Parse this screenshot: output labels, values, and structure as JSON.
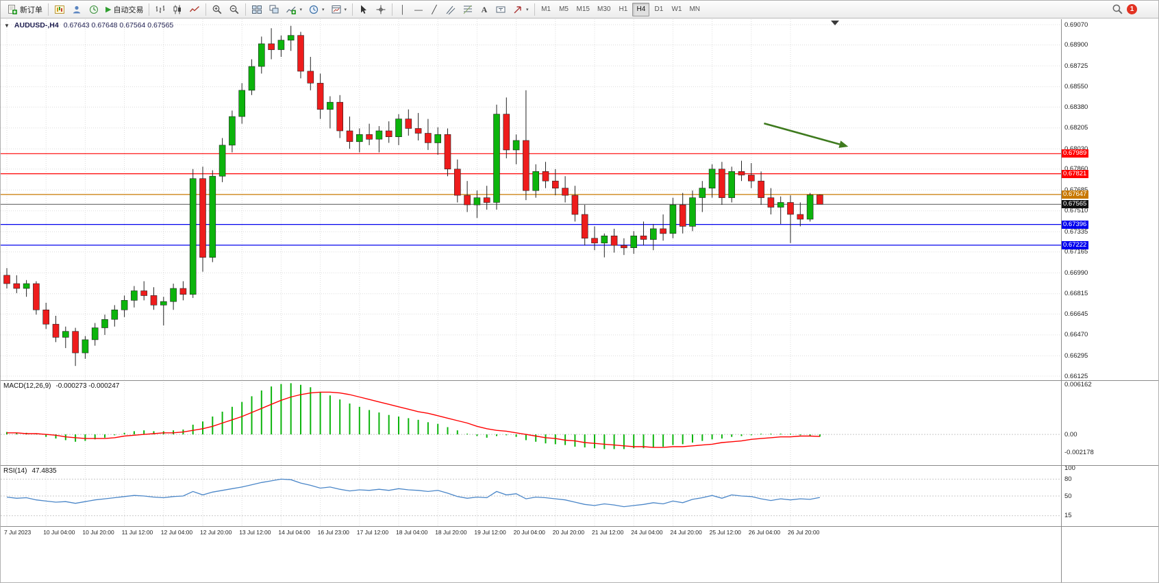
{
  "toolbar": {
    "new_order_label": "新订单",
    "autotrading_label": "自动交易",
    "timeframes": [
      {
        "label": "M1",
        "active": false
      },
      {
        "label": "M5",
        "active": false
      },
      {
        "label": "M15",
        "active": false
      },
      {
        "label": "M30",
        "active": false
      },
      {
        "label": "H1",
        "active": false
      },
      {
        "label": "H4",
        "active": true
      },
      {
        "label": "D1",
        "active": false
      },
      {
        "label": "W1",
        "active": false
      },
      {
        "label": "MN",
        "active": false
      }
    ],
    "notification_count": "1"
  },
  "chart": {
    "symbol_period": "AUDUSD-,H4",
    "ohlc_display": "0.67643 0.67648 0.67564 0.67565"
  },
  "chart_data": {
    "type": "candlestick",
    "symbol": "AUDUSD",
    "period": "H4",
    "current_ohlc": {
      "open": 0.67643,
      "high": 0.67648,
      "low": 0.67564,
      "close": 0.67565
    },
    "price_range": [
      0.66125,
      0.6907
    ],
    "label_every_n_candles": 4,
    "y_axis_labels": [
      "0.69070",
      "0.68900",
      "0.68725",
      "0.68550",
      "0.68380",
      "0.68205",
      "0.68030",
      "0.67860",
      "0.67685",
      "0.67510",
      "0.67335",
      "0.67165",
      "0.66990",
      "0.66815",
      "0.66645",
      "0.66470",
      "0.66295",
      "0.66125"
    ],
    "time_labels": [
      "7 Jul 2023",
      "10 Jul 04:00",
      "10 Jul 20:00",
      "11 Jul 12:00",
      "12 Jul 04:00",
      "12 Jul 20:00",
      "13 Jul 12:00",
      "14 Jul 04:00",
      "16 Jul 23:00",
      "17 Jul 12:00",
      "18 Jul 04:00",
      "18 Jul 20:00",
      "19 Jul 12:00",
      "20 Jul 04:00",
      "20 Jul 20:00",
      "21 Jul 12:00",
      "24 Jul 04:00",
      "24 Jul 20:00",
      "25 Jul 12:00",
      "26 Jul 04:00",
      "26 Jul 20:00"
    ],
    "colors": {
      "up": "#0CB40C",
      "down": "#EE1C1C",
      "wick": "#222222",
      "grid": "#DCDCDC"
    },
    "candles": [
      [
        0.6697,
        0.6703,
        0.6686,
        0.669
      ],
      [
        0.669,
        0.6697,
        0.6682,
        0.6686
      ],
      [
        0.6686,
        0.6693,
        0.6679,
        0.669
      ],
      [
        0.669,
        0.6692,
        0.6664,
        0.6668
      ],
      [
        0.6668,
        0.6674,
        0.6652,
        0.6656
      ],
      [
        0.6656,
        0.6663,
        0.6641,
        0.6645
      ],
      [
        0.6645,
        0.6654,
        0.6636,
        0.665
      ],
      [
        0.665,
        0.6653,
        0.6621,
        0.6632
      ],
      [
        0.6632,
        0.6646,
        0.6627,
        0.6643
      ],
      [
        0.6643,
        0.6657,
        0.6638,
        0.6653
      ],
      [
        0.6653,
        0.6664,
        0.6647,
        0.666
      ],
      [
        0.666,
        0.6672,
        0.6654,
        0.6668
      ],
      [
        0.6668,
        0.668,
        0.6662,
        0.6676
      ],
      [
        0.6676,
        0.6688,
        0.667,
        0.6684
      ],
      [
        0.6684,
        0.6692,
        0.6676,
        0.668
      ],
      [
        0.668,
        0.6687,
        0.6668,
        0.6672
      ],
      [
        0.6672,
        0.6679,
        0.6655,
        0.6675
      ],
      [
        0.6675,
        0.669,
        0.6668,
        0.6686
      ],
      [
        0.6686,
        0.6692,
        0.6676,
        0.6681
      ],
      [
        0.6681,
        0.6786,
        0.6678,
        0.6778
      ],
      [
        0.6778,
        0.6788,
        0.67,
        0.6712
      ],
      [
        0.6712,
        0.6785,
        0.6708,
        0.678
      ],
      [
        0.678,
        0.6812,
        0.6775,
        0.6806
      ],
      [
        0.6806,
        0.6835,
        0.68,
        0.683
      ],
      [
        0.683,
        0.6858,
        0.6824,
        0.6852
      ],
      [
        0.6852,
        0.6878,
        0.6848,
        0.6872
      ],
      [
        0.6872,
        0.6897,
        0.6866,
        0.6891
      ],
      [
        0.6891,
        0.6904,
        0.6878,
        0.6886
      ],
      [
        0.6886,
        0.6898,
        0.688,
        0.6894
      ],
      [
        0.6894,
        0.6906,
        0.6885,
        0.6898
      ],
      [
        0.6898,
        0.6901,
        0.6862,
        0.6868
      ],
      [
        0.6868,
        0.688,
        0.6852,
        0.6858
      ],
      [
        0.6858,
        0.6866,
        0.6828,
        0.6836
      ],
      [
        0.6836,
        0.6847,
        0.682,
        0.6842
      ],
      [
        0.6842,
        0.6848,
        0.6812,
        0.6818
      ],
      [
        0.6818,
        0.683,
        0.6803,
        0.6809
      ],
      [
        0.6809,
        0.682,
        0.68,
        0.6815
      ],
      [
        0.6815,
        0.6824,
        0.6806,
        0.6811
      ],
      [
        0.6811,
        0.6822,
        0.68,
        0.6818
      ],
      [
        0.6818,
        0.6826,
        0.6808,
        0.6813
      ],
      [
        0.6813,
        0.6832,
        0.6806,
        0.6828
      ],
      [
        0.6828,
        0.6836,
        0.6814,
        0.682
      ],
      [
        0.682,
        0.6833,
        0.681,
        0.6816
      ],
      [
        0.6816,
        0.6828,
        0.6802,
        0.6808
      ],
      [
        0.6808,
        0.6821,
        0.6798,
        0.6815
      ],
      [
        0.6815,
        0.682,
        0.678,
        0.6786
      ],
      [
        0.6786,
        0.6794,
        0.6758,
        0.6764
      ],
      [
        0.6764,
        0.6776,
        0.675,
        0.6756
      ],
      [
        0.6756,
        0.6768,
        0.6745,
        0.6762
      ],
      [
        0.6762,
        0.6772,
        0.6752,
        0.6758
      ],
      [
        0.6758,
        0.684,
        0.6752,
        0.6832
      ],
      [
        0.6832,
        0.6846,
        0.6795,
        0.6802
      ],
      [
        0.6802,
        0.6815,
        0.679,
        0.681
      ],
      [
        0.681,
        0.6852,
        0.676,
        0.6768
      ],
      [
        0.6768,
        0.679,
        0.6762,
        0.6784
      ],
      [
        0.6784,
        0.6792,
        0.677,
        0.6776
      ],
      [
        0.6776,
        0.6786,
        0.6764,
        0.677
      ],
      [
        0.677,
        0.678,
        0.6758,
        0.6764
      ],
      [
        0.6764,
        0.6772,
        0.6742,
        0.6748
      ],
      [
        0.6748,
        0.6756,
        0.6722,
        0.6728
      ],
      [
        0.6728,
        0.6738,
        0.6718,
        0.6724
      ],
      [
        0.6724,
        0.6732,
        0.6712,
        0.673
      ],
      [
        0.673,
        0.6736,
        0.6716,
        0.6722
      ],
      [
        0.6722,
        0.6728,
        0.6714,
        0.672
      ],
      [
        0.672,
        0.6734,
        0.6715,
        0.673
      ],
      [
        0.673,
        0.6742,
        0.6722,
        0.6727
      ],
      [
        0.6727,
        0.674,
        0.6718,
        0.6736
      ],
      [
        0.6736,
        0.6748,
        0.6726,
        0.6732
      ],
      [
        0.6732,
        0.6762,
        0.6728,
        0.6756
      ],
      [
        0.6756,
        0.6766,
        0.6732,
        0.6738
      ],
      [
        0.6738,
        0.6768,
        0.6734,
        0.6762
      ],
      [
        0.6762,
        0.6776,
        0.675,
        0.677
      ],
      [
        0.677,
        0.679,
        0.6762,
        0.6786
      ],
      [
        0.6786,
        0.6792,
        0.6756,
        0.6762
      ],
      [
        0.6762,
        0.6788,
        0.6758,
        0.6784
      ],
      [
        0.6784,
        0.6793,
        0.6776,
        0.6781
      ],
      [
        0.6781,
        0.6791,
        0.677,
        0.6776
      ],
      [
        0.6776,
        0.6784,
        0.6756,
        0.6762
      ],
      [
        0.6762,
        0.677,
        0.6748,
        0.6754
      ],
      [
        0.6754,
        0.6763,
        0.674,
        0.6758
      ],
      [
        0.6758,
        0.6764,
        0.6724,
        0.6748
      ],
      [
        0.6748,
        0.6758,
        0.6738,
        0.6744
      ],
      [
        0.6744,
        0.6766,
        0.6742,
        0.67643
      ],
      [
        0.67643,
        0.67648,
        0.67564,
        0.67565
      ]
    ],
    "hlines": [
      {
        "price": 0.67989,
        "color": "#FF0000"
      },
      {
        "price": 0.67821,
        "color": "#FF0000"
      },
      {
        "price": 0.67647,
        "color": "#C87800"
      },
      {
        "price": 0.67396,
        "color": "#0000EE"
      },
      {
        "price": 0.67222,
        "color": "#0000EE"
      }
    ],
    "current_price": {
      "value": 0.67565,
      "color": "#111111"
    },
    "annotation_arrow": {
      "x1_candle": 77.3,
      "price1": 0.68243,
      "x2_candle": 85.9,
      "price2": 0.68048,
      "color": "#3E7A1E"
    },
    "indicators": [
      {
        "type": "MACD",
        "label": "MACD(12,26,9)",
        "current_values": "-0.000273 -0.000247",
        "axis_labels": [
          "0.006162",
          "0.00",
          "-0.002178"
        ],
        "colors": {
          "histogram": "#0CB40C",
          "signal": "#FF0000"
        },
        "histogram": [
          0.0003,
          0.0002,
          0.0002,
          0,
          -0.0003,
          -0.0005,
          -0.0007,
          -0.0009,
          -0.0008,
          -0.0006,
          -0.0004,
          -0.0001,
          0.0002,
          0.0004,
          0.0005,
          0.0004,
          0.0004,
          0.0005,
          0.0006,
          0.0012,
          0.0016,
          0.0022,
          0.0028,
          0.0034,
          0.004,
          0.0047,
          0.0054,
          0.0059,
          0.0062,
          0.0063,
          0.0061,
          0.0058,
          0.0052,
          0.0048,
          0.0043,
          0.0038,
          0.0034,
          0.003,
          0.0027,
          0.0024,
          0.0022,
          0.002,
          0.0018,
          0.0015,
          0.0013,
          0.0009,
          0.0005,
          0.0001,
          -0.0002,
          -0.0004,
          -0.0002,
          -0.0001,
          -0.0003,
          -0.0007,
          -0.0009,
          -0.0011,
          -0.0012,
          -0.0013,
          -0.0015,
          -0.0016,
          -0.0017,
          -0.0018,
          -0.0018,
          -0.0018,
          -0.0017,
          -0.0017,
          -0.0016,
          -0.0015,
          -0.0013,
          -0.0012,
          -0.001,
          -0.0008,
          -0.0006,
          -0.0005,
          -0.0003,
          -0.0002,
          -0.0001,
          0,
          0.0001,
          0.0001,
          0,
          -0.0001,
          -0.0002,
          -0.000273
        ],
        "signal": [
          0.0002,
          0.0002,
          0.0001,
          0.0001,
          0,
          -0.0001,
          -0.0003,
          -0.0004,
          -0.0005,
          -0.0005,
          -0.0005,
          -0.0004,
          -0.0002,
          -0.0001,
          0,
          0.0001,
          0.0002,
          0.0002,
          0.0003,
          0.0005,
          0.0007,
          0.001,
          0.0014,
          0.0018,
          0.0022,
          0.0027,
          0.0032,
          0.0037,
          0.0042,
          0.0046,
          0.0049,
          0.0051,
          0.0052,
          0.0052,
          0.0051,
          0.0049,
          0.0046,
          0.0043,
          0.004,
          0.0037,
          0.0034,
          0.0031,
          0.0028,
          0.0026,
          0.0023,
          0.002,
          0.0017,
          0.0014,
          0.001,
          0.0007,
          0.0005,
          0.0004,
          0.0002,
          0,
          -0.0002,
          -0.0004,
          -0.0005,
          -0.0007,
          -0.0008,
          -0.001,
          -0.0011,
          -0.0012,
          -0.0013,
          -0.0014,
          -0.0015,
          -0.0015,
          -0.0016,
          -0.0016,
          -0.0015,
          -0.0015,
          -0.0014,
          -0.0013,
          -0.0012,
          -0.001,
          -0.0009,
          -0.0008,
          -0.0006,
          -0.0005,
          -0.0004,
          -0.0003,
          -0.0003,
          -0.0002,
          -0.0002,
          -0.000247
        ]
      },
      {
        "type": "RSI",
        "label": "RSI(14)",
        "current_value": "47.4835",
        "axis_labels": [
          "100",
          "80",
          "50",
          "15"
        ],
        "levels": [
          80,
          50,
          15
        ],
        "color": "#4A86C8",
        "values": [
          48,
          46,
          47,
          43,
          41,
          39,
          40,
          37,
          40,
          43,
          45,
          47,
          49,
          51,
          50,
          48,
          47,
          49,
          50,
          58,
          52,
          57,
          60,
          63,
          66,
          70,
          74,
          77,
          80,
          79,
          73,
          69,
          64,
          66,
          62,
          59,
          61,
          60,
          62,
          60,
          63,
          61,
          60,
          58,
          60,
          55,
          49,
          46,
          48,
          47,
          58,
          52,
          54,
          45,
          48,
          47,
          45,
          43,
          39,
          35,
          33,
          36,
          34,
          31,
          33,
          35,
          38,
          36,
          41,
          38,
          44,
          47,
          51,
          46,
          52,
          50,
          49,
          45,
          42,
          45,
          43,
          45,
          44,
          47.4835
        ]
      }
    ]
  }
}
